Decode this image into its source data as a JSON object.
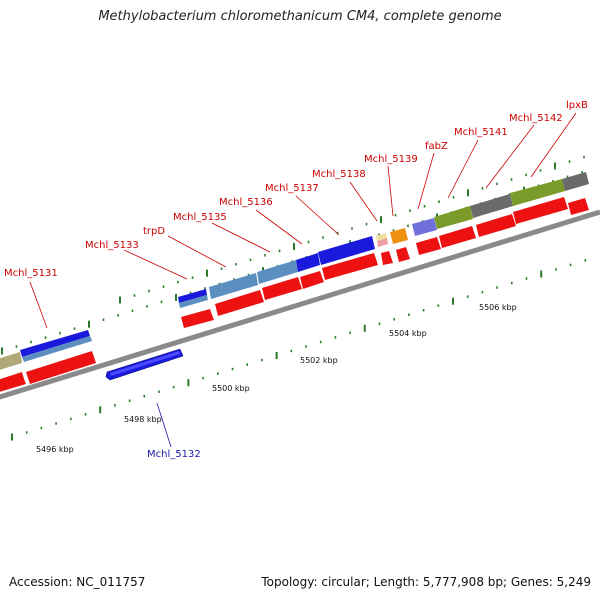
{
  "title": "Methylobacterium chloromethanicum CM4, complete genome",
  "footer": {
    "accession": "Accession: NC_011757",
    "topology": "Topology: circular; Length: 5,777,908 bp; Genes: 5,249"
  },
  "colors": {
    "label_red": "#cc0000",
    "label_blue": "#1a1aaa",
    "backbone": "#8a8a8a",
    "tick": "#2a7a2a",
    "forward_red": "#ee1111"
  },
  "kbp_labels": [
    "5496 kbp",
    "5498 kbp",
    "5500 kbp",
    "5502 kbp",
    "5504 kbp",
    "5506 kbp"
  ],
  "genes": [
    {
      "name": "Mchl_5131",
      "color": "#cc0000"
    },
    {
      "name": "Mchl_5132",
      "color": "#1a1aaa"
    },
    {
      "name": "Mchl_5133",
      "color": "#cc0000"
    },
    {
      "name": "trpD",
      "color": "#cc0000"
    },
    {
      "name": "Mchl_5135",
      "color": "#cc0000"
    },
    {
      "name": "Mchl_5136",
      "color": "#cc0000"
    },
    {
      "name": "Mchl_5137",
      "color": "#cc0000"
    },
    {
      "name": "Mchl_5138",
      "color": "#cc0000"
    },
    {
      "name": "Mchl_5139",
      "color": "#cc0000"
    },
    {
      "name": "fabZ",
      "color": "#cc0000"
    },
    {
      "name": "Mchl_5141",
      "color": "#cc0000"
    },
    {
      "name": "Mchl_5142",
      "color": "#cc0000"
    },
    {
      "name": "lpxB",
      "color": "#cc0000"
    }
  ],
  "cog_colors": [
    "#b0a878",
    "#1a1add",
    "#5a8fc0",
    "#7a9a2a",
    "#6a6a6a",
    "#7070dd",
    "#f09010",
    "#f0a0a0",
    "#f0e0a0"
  ]
}
